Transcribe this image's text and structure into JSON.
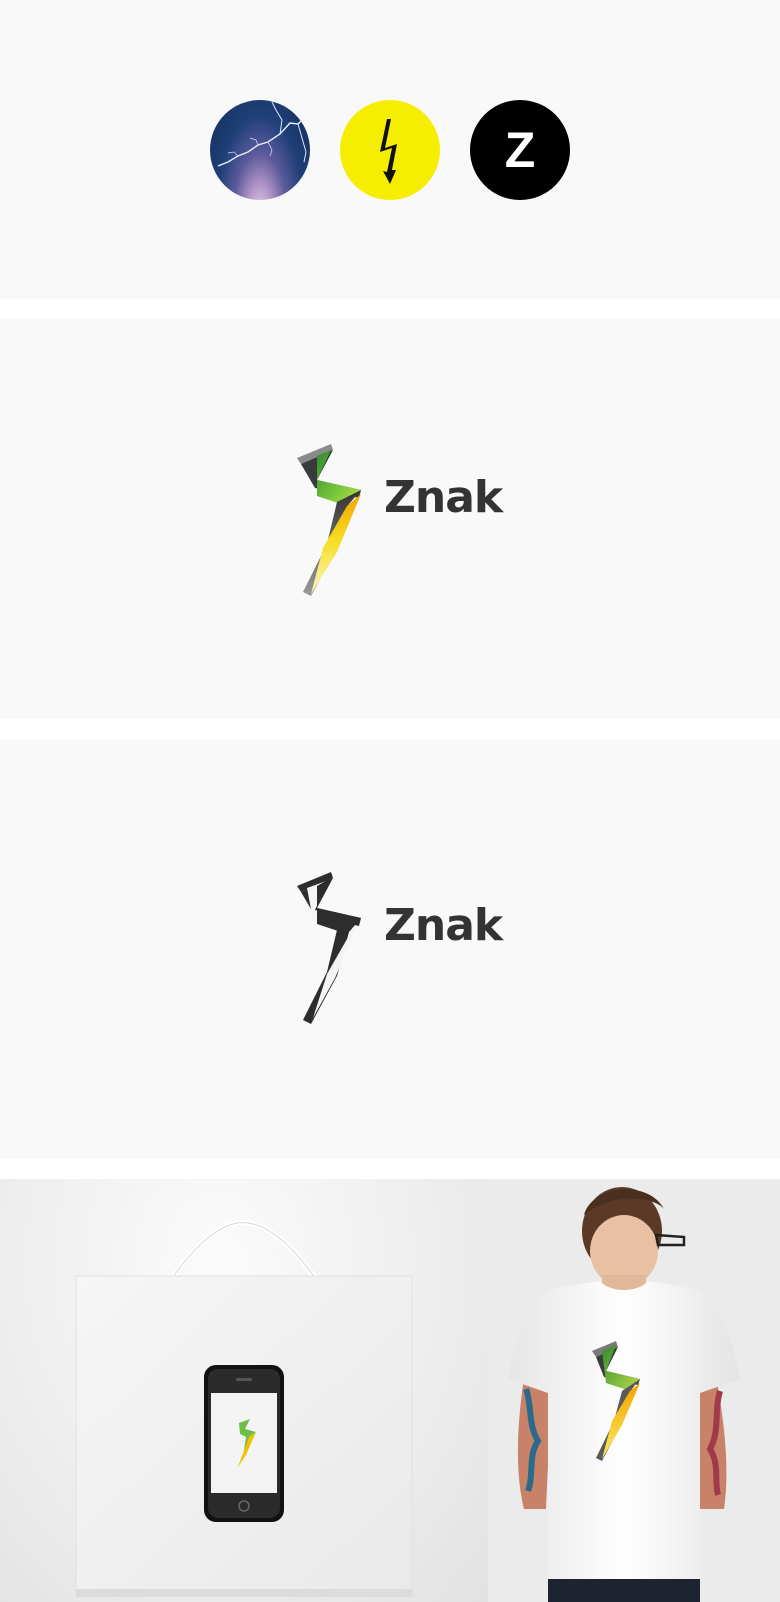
{
  "colors": {
    "page_background": "#f9f9f9",
    "accent_yellow": "#f6ee00",
    "brand_text": "#333333",
    "bolt_green": "#6cc04a",
    "bolt_orange": "#f5a000",
    "bolt_dark": "#2d2d2d"
  },
  "swatches": {
    "storm_circle": {
      "icon": "lightning-storm-icon"
    },
    "yellow_circle": {
      "icon": "high-voltage-bolt-icon"
    },
    "black_circle": {
      "icon": "z-letter-icon",
      "letter": "Z"
    }
  },
  "logo_color": {
    "icon": "gradient-bolt-icon",
    "wordmark": "Znak"
  },
  "logo_mono": {
    "icon": "dark-bolt-icon",
    "wordmark": "Znak"
  },
  "mockups": {
    "bag": {
      "icon": "shopping-bag-icon",
      "device_icon": "smartphone-icon"
    },
    "shirt": {
      "icon": "tshirt-person-icon"
    }
  }
}
